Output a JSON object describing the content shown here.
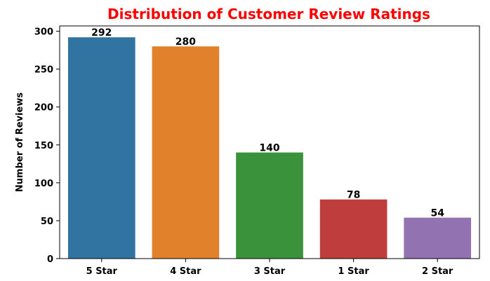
{
  "chart_data": {
    "type": "bar",
    "title": "Distribution of Customer Review Ratings",
    "title_color": "#ff0000",
    "xlabel": "",
    "ylabel": "Number of Reviews",
    "ylim": [
      0,
      307
    ],
    "yticks": [
      0,
      50,
      100,
      150,
      200,
      250,
      300
    ],
    "grid": false,
    "categories": [
      "5 Star",
      "4 Star",
      "3 Star",
      "1 Star",
      "2 Star"
    ],
    "values": [
      292,
      280,
      140,
      78,
      54
    ],
    "data_labels": [
      "292",
      "280",
      "140",
      "78",
      "54"
    ],
    "colors": [
      "#3274a1",
      "#e1812c",
      "#3a923a",
      "#c03d3e",
      "#9372b2"
    ]
  }
}
